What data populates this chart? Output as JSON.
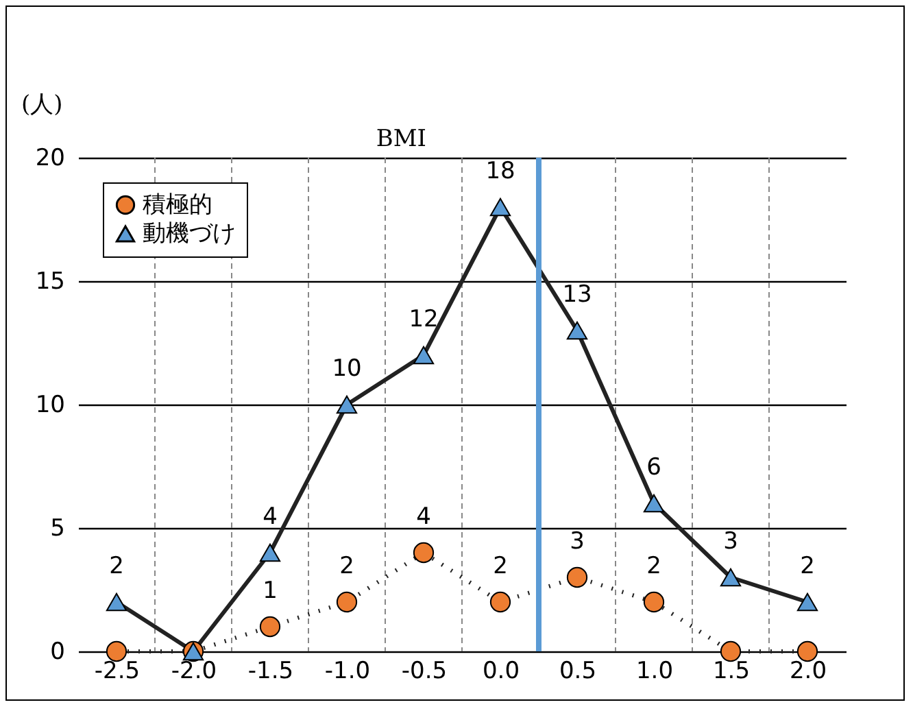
{
  "chart_data": {
    "type": "line",
    "xlabel": "BMI",
    "ylabel": "(人)",
    "xlim": [
      -2.75,
      2.25
    ],
    "xticks": [
      {
        "value": -2.5,
        "label": "-2.5"
      },
      {
        "value": -2,
        "label": "-2.0"
      },
      {
        "value": -1.5,
        "label": "-1.5"
      },
      {
        "value": -1,
        "label": "-1.0"
      },
      {
        "value": -0.5,
        "label": "-0.5"
      },
      {
        "value": 0,
        "label": "0.0"
      },
      {
        "value": 0.5,
        "label": "0.5"
      },
      {
        "value": 1,
        "label": "1.0"
      },
      {
        "value": 1.5,
        "label": "1.5"
      },
      {
        "value": 2,
        "label": "2.0"
      },
      {
        "value": -2.25,
        "label": null
      },
      {
        "value": -1.75,
        "label": null
      },
      {
        "value": -1.25,
        "label": null
      },
      {
        "value": -0.75,
        "label": null
      },
      {
        "value": -0.25,
        "label": null
      },
      {
        "value": 0.25,
        "label": null
      },
      {
        "value": 0.75,
        "label": null
      },
      {
        "value": 1.25,
        "label": null
      },
      {
        "value": 1.75,
        "label": null
      }
    ],
    "x": [
      -2.5,
      -2,
      -1.5,
      -1,
      -0.5,
      0,
      0.5,
      1,
      1.5,
      2
    ],
    "ylim": [
      0,
      20
    ],
    "yticks": [
      0,
      5,
      10,
      15,
      20
    ],
    "grid": true,
    "legend": "top left",
    "series": [
      {
        "name": "積極的",
        "color": "#ed7d31",
        "marker": "circle",
        "line_style": "dotted",
        "values": [
          0,
          0,
          1,
          2,
          4,
          2,
          3,
          2,
          0,
          0
        ],
        "value_labels": [
          null,
          null,
          "1",
          "2",
          "4",
          "2",
          "3",
          "2",
          null,
          null
        ]
      },
      {
        "name": "動機づけ",
        "color": "#5b9bd5",
        "marker": "triangle",
        "line_style": "solid",
        "values": [
          2,
          0,
          4,
          10,
          12,
          18,
          13,
          6,
          3,
          2
        ],
        "value_labels": [
          "2",
          null,
          "4",
          "10",
          "12",
          "18",
          "13",
          "6",
          "3",
          "2"
        ]
      }
    ],
    "ref_lines": [
      {
        "axis": "x",
        "value": 0.25,
        "color": "#5b9bd5"
      }
    ]
  }
}
